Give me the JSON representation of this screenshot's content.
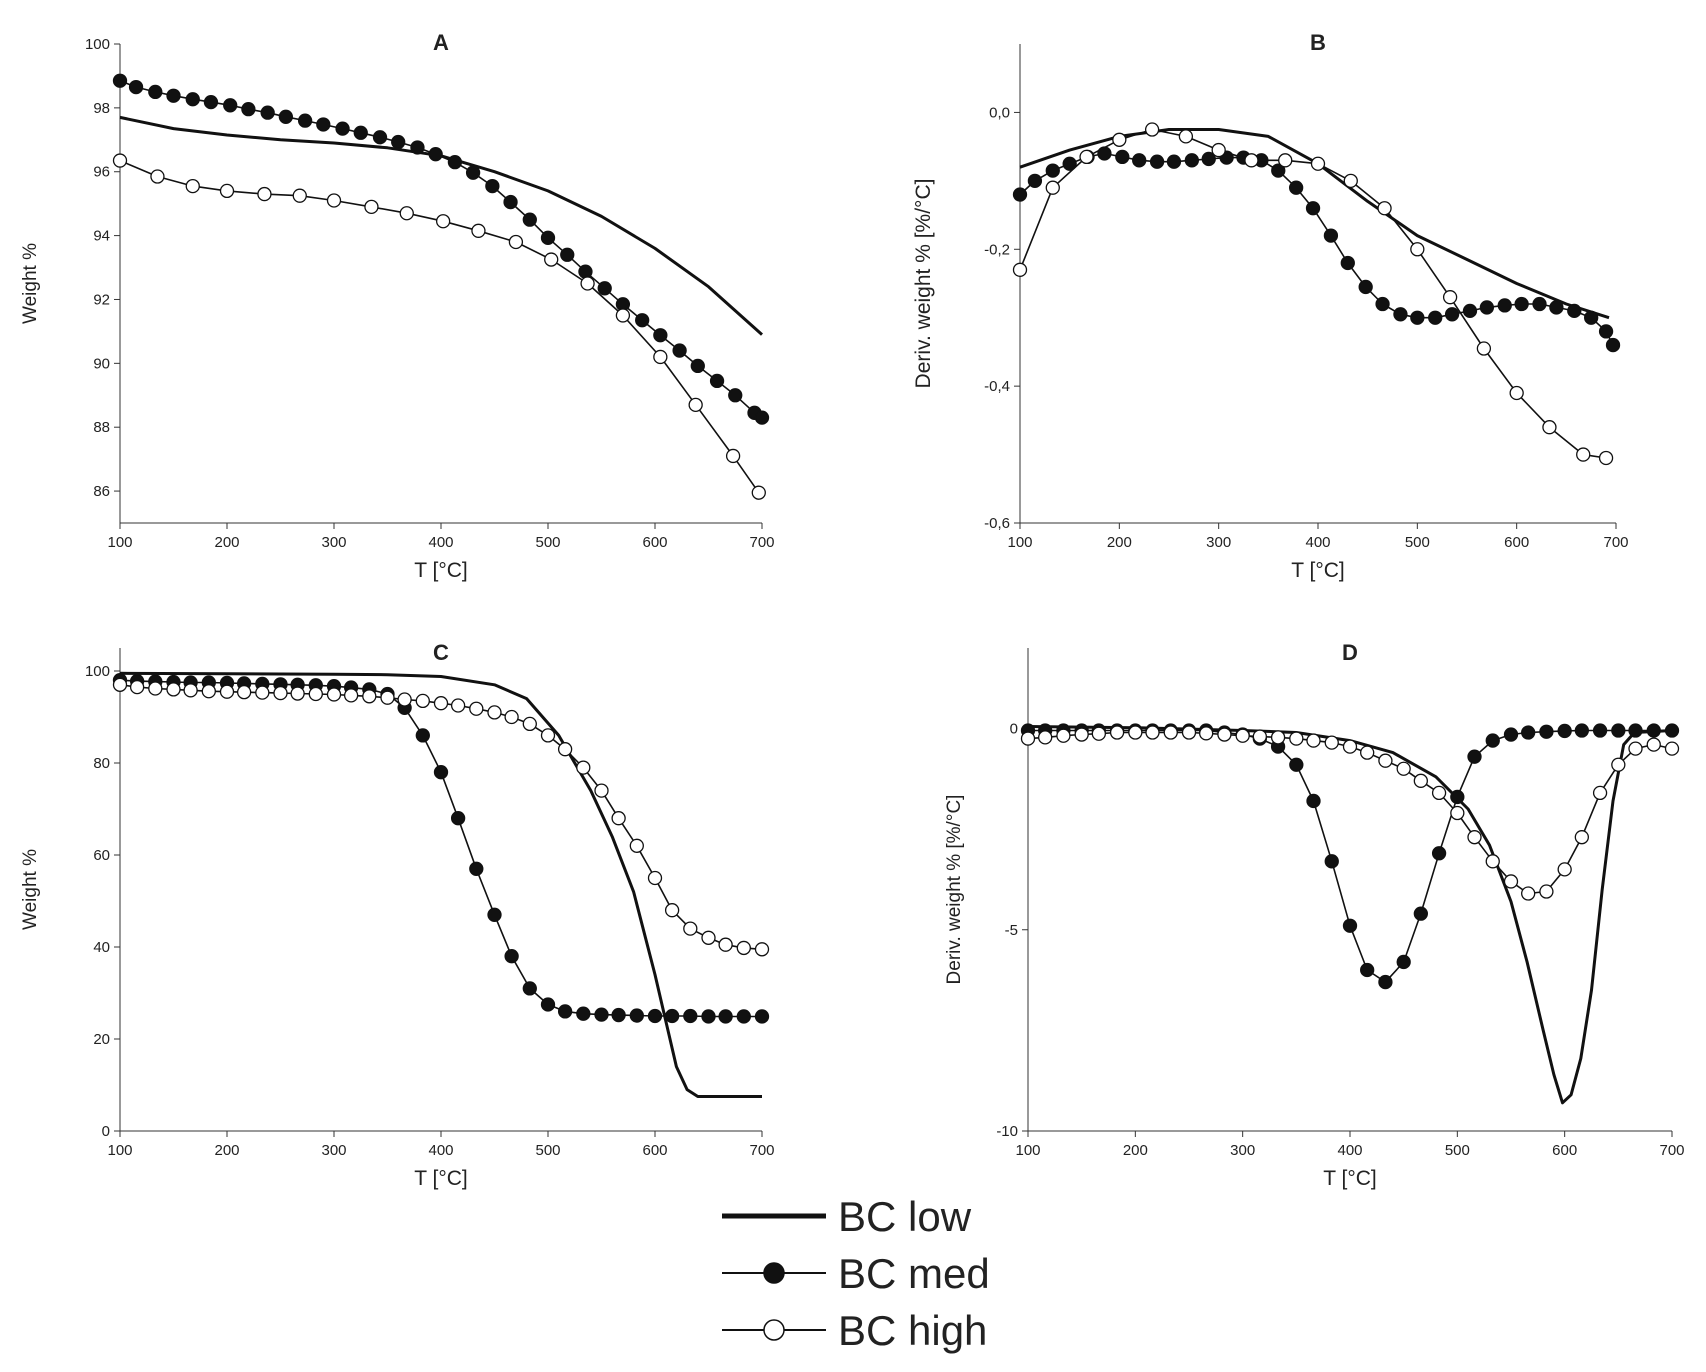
{
  "chart_data": [
    {
      "panel": "A",
      "type": "line",
      "title": "A",
      "xlabel": "T [°C]",
      "ylabel": "Weight %",
      "xlim": [
        100,
        700
      ],
      "ylim": [
        85,
        100
      ],
      "xticks": [
        100,
        200,
        300,
        400,
        500,
        600,
        700
      ],
      "xtick_labels": [
        "100",
        "200",
        "300",
        "400",
        "500",
        "600",
        "700"
      ],
      "yticks": [
        86,
        88,
        90,
        92,
        94,
        96,
        98,
        100
      ],
      "ytick_labels": [
        "86",
        "88",
        "90",
        "92",
        "94",
        "96",
        "98",
        "100"
      ],
      "grid": false,
      "series": [
        {
          "name": "BC low",
          "marker": "none",
          "x": [
            100,
            150,
            200,
            250,
            300,
            350,
            400,
            450,
            500,
            550,
            600,
            650,
            700
          ],
          "y": [
            97.7,
            97.35,
            97.15,
            97.0,
            96.9,
            96.75,
            96.5,
            96.0,
            95.4,
            94.6,
            93.6,
            92.4,
            90.9
          ]
        },
        {
          "name": "BC med",
          "marker": "filled",
          "x": [
            100,
            115,
            133,
            150,
            168,
            185,
            203,
            220,
            238,
            255,
            273,
            290,
            308,
            325,
            343,
            360,
            378,
            395,
            413,
            430,
            448,
            465,
            483,
            500,
            518,
            535,
            553,
            570,
            588,
            605,
            623,
            640,
            658,
            675,
            693,
            700
          ],
          "y": [
            98.85,
            98.65,
            98.5,
            98.38,
            98.27,
            98.18,
            98.08,
            97.96,
            97.85,
            97.72,
            97.6,
            97.48,
            97.35,
            97.22,
            97.08,
            96.93,
            96.76,
            96.55,
            96.3,
            95.97,
            95.55,
            95.05,
            94.5,
            93.93,
            93.4,
            92.87,
            92.35,
            91.85,
            91.35,
            90.88,
            90.4,
            89.92,
            89.45,
            89.0,
            88.45,
            88.3
          ]
        },
        {
          "name": "BC high",
          "marker": "open",
          "x": [
            100,
            135,
            168,
            200,
            235,
            268,
            300,
            335,
            368,
            402,
            435,
            470,
            503,
            537,
            570,
            605,
            638,
            673,
            697
          ],
          "y": [
            96.35,
            95.85,
            95.55,
            95.4,
            95.3,
            95.25,
            95.1,
            94.9,
            94.7,
            94.45,
            94.15,
            93.8,
            93.25,
            92.5,
            91.5,
            90.2,
            88.7,
            87.1,
            85.95
          ]
        }
      ]
    },
    {
      "panel": "B",
      "type": "line",
      "title": "B",
      "xlabel": "T [°C]",
      "ylabel": "Deriv. weight % [%/°C]",
      "xlim": [
        100,
        700
      ],
      "ylim": [
        -0.6,
        0.1
      ],
      "xticks": [
        100,
        200,
        300,
        400,
        500,
        600,
        700
      ],
      "xtick_labels": [
        "100",
        "200",
        "300",
        "400",
        "500",
        "600",
        "700"
      ],
      "yticks": [
        -0.6,
        -0.4,
        -0.2,
        0.0
      ],
      "ytick_labels": [
        "-0,6",
        "-0,4",
        "-0,2",
        "0,0"
      ],
      "grid": false,
      "series": [
        {
          "name": "BC low",
          "marker": "none",
          "x": [
            100,
            150,
            200,
            250,
            300,
            350,
            400,
            450,
            500,
            550,
            600,
            650,
            693
          ],
          "y": [
            -0.08,
            -0.055,
            -0.035,
            -0.025,
            -0.025,
            -0.035,
            -0.075,
            -0.13,
            -0.18,
            -0.215,
            -0.25,
            -0.28,
            -0.3
          ]
        },
        {
          "name": "BC med",
          "marker": "filled",
          "x": [
            100,
            115,
            133,
            150,
            168,
            185,
            203,
            220,
            238,
            255,
            273,
            290,
            308,
            325,
            343,
            360,
            378,
            395,
            413,
            430,
            448,
            465,
            483,
            500,
            518,
            535,
            553,
            570,
            588,
            605,
            623,
            640,
            658,
            675,
            690,
            697
          ],
          "y": [
            -0.12,
            -0.1,
            -0.085,
            -0.075,
            -0.065,
            -0.06,
            -0.065,
            -0.07,
            -0.072,
            -0.072,
            -0.07,
            -0.068,
            -0.066,
            -0.066,
            -0.07,
            -0.085,
            -0.11,
            -0.14,
            -0.18,
            -0.22,
            -0.255,
            -0.28,
            -0.295,
            -0.3,
            -0.3,
            -0.295,
            -0.29,
            -0.285,
            -0.282,
            -0.28,
            -0.28,
            -0.285,
            -0.29,
            -0.3,
            -0.32,
            -0.34
          ]
        },
        {
          "name": "BC high",
          "marker": "open",
          "x": [
            100,
            133,
            167,
            200,
            233,
            267,
            300,
            333,
            367,
            400,
            433,
            467,
            500,
            533,
            567,
            600,
            633,
            667,
            690
          ],
          "y": [
            -0.23,
            -0.11,
            -0.065,
            -0.04,
            -0.025,
            -0.035,
            -0.055,
            -0.07,
            -0.07,
            -0.075,
            -0.1,
            -0.14,
            -0.2,
            -0.27,
            -0.345,
            -0.41,
            -0.46,
            -0.5,
            -0.505
          ]
        }
      ]
    },
    {
      "panel": "C",
      "type": "line",
      "title": "C",
      "xlabel": "T [°C]",
      "ylabel": "Weight %",
      "xlim": [
        100,
        700
      ],
      "ylim": [
        0,
        105
      ],
      "xticks": [
        100,
        200,
        300,
        400,
        500,
        600,
        700
      ],
      "xtick_labels": [
        "100",
        "200",
        "300",
        "400",
        "500",
        "600",
        "700"
      ],
      "yticks": [
        0,
        20,
        40,
        60,
        80,
        100
      ],
      "ytick_labels": [
        "0",
        "20",
        "40",
        "60",
        "80",
        "100"
      ],
      "grid": false,
      "series": [
        {
          "name": "BC low",
          "marker": "none",
          "x": [
            100,
            200,
            300,
            350,
            400,
            450,
            480,
            510,
            540,
            560,
            580,
            600,
            620,
            630,
            640,
            660,
            700
          ],
          "y": [
            99.5,
            99.4,
            99.3,
            99.2,
            98.8,
            97.0,
            94.0,
            86.0,
            74.0,
            64.0,
            52.0,
            34.0,
            14.0,
            9.0,
            7.5,
            7.5,
            7.5
          ]
        },
        {
          "name": "BC med",
          "marker": "filled",
          "x": [
            100,
            116,
            133,
            150,
            166,
            183,
            200,
            216,
            233,
            250,
            266,
            283,
            300,
            316,
            333,
            350,
            366,
            383,
            400,
            416,
            433,
            450,
            466,
            483,
            500,
            516,
            533,
            550,
            566,
            583,
            600,
            616,
            633,
            650,
            666,
            683,
            700
          ],
          "y": [
            98.0,
            97.8,
            97.7,
            97.6,
            97.5,
            97.5,
            97.4,
            97.3,
            97.2,
            97.1,
            97.0,
            96.9,
            96.7,
            96.4,
            96.0,
            95.0,
            92.0,
            86.0,
            78.0,
            68.0,
            57.0,
            47.0,
            38.0,
            31.0,
            27.5,
            26.0,
            25.5,
            25.3,
            25.2,
            25.1,
            25.0,
            25.0,
            25.0,
            24.9,
            24.9,
            24.9,
            24.9
          ]
        },
        {
          "name": "BC high",
          "marker": "open",
          "x": [
            100,
            116,
            133,
            150,
            166,
            183,
            200,
            216,
            233,
            250,
            266,
            283,
            300,
            316,
            333,
            350,
            366,
            383,
            400,
            416,
            433,
            450,
            466,
            483,
            500,
            516,
            533,
            550,
            566,
            583,
            600,
            616,
            633,
            650,
            666,
            683,
            700
          ],
          "y": [
            97.0,
            96.5,
            96.2,
            96.0,
            95.8,
            95.6,
            95.5,
            95.4,
            95.3,
            95.2,
            95.1,
            95.0,
            94.9,
            94.7,
            94.5,
            94.2,
            93.8,
            93.5,
            93.0,
            92.5,
            91.8,
            91.0,
            90.0,
            88.5,
            86.0,
            83.0,
            79.0,
            74.0,
            68.0,
            62.0,
            55.0,
            48.0,
            44.0,
            42.0,
            40.5,
            39.8,
            39.5
          ]
        }
      ]
    },
    {
      "panel": "D",
      "type": "line",
      "title": "D",
      "xlabel": "T [°C]",
      "ylabel": "Deriv. weight % [%/°C]",
      "xlim": [
        100,
        700
      ],
      "ylim": [
        -10,
        2
      ],
      "xticks": [
        100,
        200,
        300,
        400,
        500,
        600,
        700
      ],
      "xtick_labels": [
        "100",
        "200",
        "300",
        "400",
        "500",
        "600",
        "700"
      ],
      "yticks": [
        -10,
        -5,
        0
      ],
      "ytick_labels": [
        "-10",
        "-5",
        "0"
      ],
      "grid": false,
      "series": [
        {
          "name": "BC low",
          "marker": "none",
          "x": [
            100,
            200,
            300,
            350,
            400,
            440,
            480,
            510,
            530,
            550,
            565,
            580,
            590,
            598,
            606,
            615,
            625,
            635,
            645,
            655,
            665,
            700
          ],
          "y": [
            0.05,
            0.02,
            -0.05,
            -0.1,
            -0.3,
            -0.6,
            -1.2,
            -2.0,
            -2.9,
            -4.3,
            -5.8,
            -7.5,
            -8.6,
            -9.3,
            -9.1,
            -8.2,
            -6.5,
            -4.0,
            -1.8,
            -0.4,
            -0.1,
            -0.05
          ]
        },
        {
          "name": "BC med",
          "marker": "filled",
          "x": [
            100,
            116,
            133,
            150,
            166,
            183,
            200,
            216,
            233,
            250,
            266,
            283,
            300,
            316,
            333,
            350,
            366,
            383,
            400,
            416,
            433,
            450,
            466,
            483,
            500,
            516,
            533,
            550,
            566,
            583,
            600,
            616,
            633,
            650,
            666,
            683,
            700
          ],
          "y": [
            -0.05,
            -0.05,
            -0.05,
            -0.05,
            -0.05,
            -0.05,
            -0.05,
            -0.05,
            -0.05,
            -0.05,
            -0.05,
            -0.1,
            -0.15,
            -0.25,
            -0.45,
            -0.9,
            -1.8,
            -3.3,
            -4.9,
            -6.0,
            -6.3,
            -5.8,
            -4.6,
            -3.1,
            -1.7,
            -0.7,
            -0.3,
            -0.15,
            -0.1,
            -0.08,
            -0.06,
            -0.05,
            -0.05,
            -0.05,
            -0.05,
            -0.05,
            -0.05
          ]
        },
        {
          "name": "BC high",
          "marker": "open",
          "x": [
            100,
            116,
            133,
            150,
            166,
            183,
            200,
            216,
            233,
            250,
            266,
            283,
            300,
            316,
            333,
            350,
            366,
            383,
            400,
            416,
            433,
            450,
            466,
            483,
            500,
            516,
            533,
            550,
            566,
            583,
            600,
            616,
            633,
            650,
            666,
            683,
            700
          ],
          "y": [
            -0.25,
            -0.22,
            -0.18,
            -0.15,
            -0.13,
            -0.1,
            -0.1,
            -0.1,
            -0.1,
            -0.1,
            -0.12,
            -0.15,
            -0.18,
            -0.2,
            -0.22,
            -0.25,
            -0.3,
            -0.35,
            -0.45,
            -0.6,
            -0.8,
            -1.0,
            -1.3,
            -1.6,
            -2.1,
            -2.7,
            -3.3,
            -3.8,
            -4.1,
            -4.05,
            -3.5,
            -2.7,
            -1.6,
            -0.9,
            -0.5,
            -0.4,
            -0.5
          ]
        }
      ]
    }
  ],
  "legend": {
    "placement": "bottom-center",
    "items": [
      {
        "label": "BC low",
        "marker": "none"
      },
      {
        "label": "BC med",
        "marker": "filled"
      },
      {
        "label": "BC high",
        "marker": "open"
      }
    ]
  },
  "colors": {
    "line": "#111111",
    "marker_open_fill": "#ffffff"
  }
}
